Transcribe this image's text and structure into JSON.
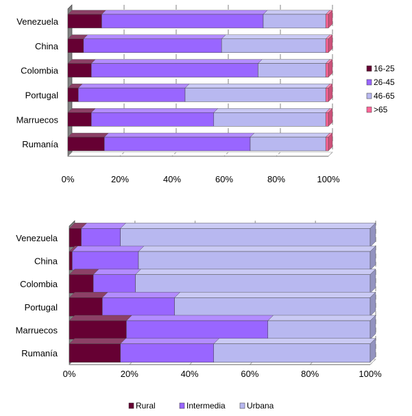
{
  "chart_data": [
    {
      "type": "bar",
      "orientation": "horizontal",
      "stacked": true,
      "percent": true,
      "categories": [
        "Venezuela",
        "China",
        "Colombia",
        "Portugal",
        "Marruecos",
        "Rumanía"
      ],
      "x_ticks": [
        "0%",
        "20%",
        "40%",
        "60%",
        "80%",
        "100%"
      ],
      "xlim": [
        0,
        100
      ],
      "grid": "vertical-dashed",
      "legend_position": "right",
      "series": [
        {
          "name": "16-25",
          "color": "#660033",
          "values": [
            13,
            6,
            9,
            4,
            9,
            14
          ]
        },
        {
          "name": "26-45",
          "color": "#9966ff",
          "values": [
            62,
            53,
            64,
            41,
            47,
            56
          ]
        },
        {
          "name": "46-65",
          "color": "#b8b8f0",
          "values": [
            24,
            40,
            26,
            54,
            43,
            29
          ]
        },
        {
          "name": ">65",
          "color": "#ff6699",
          "values": [
            1,
            1,
            1,
            1,
            1,
            1
          ]
        }
      ]
    },
    {
      "type": "bar",
      "orientation": "horizontal",
      "stacked": true,
      "percent": true,
      "categories": [
        "Venezuela",
        "China",
        "Colombia",
        "Portugal",
        "Marruecos",
        "Rumanía"
      ],
      "x_ticks": [
        "0%",
        "20%",
        "40%",
        "60%",
        "80%",
        "100%"
      ],
      "xlim": [
        0,
        100
      ],
      "grid": "vertical-dashed",
      "legend_position": "bottom",
      "series": [
        {
          "name": "Rural",
          "color": "#660033",
          "values": [
            4,
            1,
            8,
            11,
            19,
            17
          ]
        },
        {
          "name": "Intermedia",
          "color": "#9966ff",
          "values": [
            13,
            22,
            14,
            24,
            47,
            31
          ]
        },
        {
          "name": "Urbana",
          "color": "#b8b8f0",
          "values": [
            83,
            77,
            78,
            65,
            34,
            52
          ]
        }
      ]
    }
  ]
}
